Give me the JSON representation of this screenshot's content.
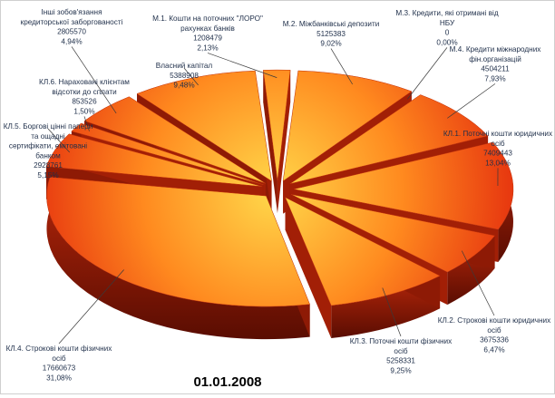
{
  "chart_data": {
    "type": "pie",
    "title": "01.01.2008",
    "style": "3d-exploded",
    "colors": {
      "light": "#ffd84a",
      "mid": "#ff8a1f",
      "dark": "#e83a10",
      "edge": "#7a1204",
      "leader": "#3a3a3a"
    },
    "slices": [
      {
        "lines": [
          "М.1. Кошти на поточних \"ЛОРО\"",
          "рахунках банків",
          "1208479",
          "2,13%"
        ],
        "value": 1208479,
        "percent": 2.13
      },
      {
        "lines": [
          "М.2. Міжбанківські депозити",
          "5125383",
          "9,02%"
        ],
        "value": 5125383,
        "percent": 9.02
      },
      {
        "lines": [
          "М.3. Кредити, які отримані від",
          "НБУ",
          "0",
          "0,00%"
        ],
        "value": 0,
        "percent": 0.0
      },
      {
        "lines": [
          "М.4. Кредити міжнародних",
          "фін.організацій",
          "4504211",
          "7,93%"
        ],
        "value": 4504211,
        "percent": 7.93
      },
      {
        "lines": [
          "КЛ.1. Поточні кошти юридичних",
          "осіб",
          "7409443",
          "13,04%"
        ],
        "value": 7409443,
        "percent": 13.04
      },
      {
        "lines": [
          "КЛ.2. Строкові кошти юридичних",
          "осіб",
          "3675336",
          "6,47%"
        ],
        "value": 3675336,
        "percent": 6.47
      },
      {
        "lines": [
          "КЛ.3. Поточні кошти фізичних",
          "осіб",
          "5258331",
          "9,25%"
        ],
        "value": 5258331,
        "percent": 9.25
      },
      {
        "lines": [
          "КЛ.4. Строкові кошти фізичних",
          "осіб",
          "17660673",
          "31,08%"
        ],
        "value": 17660673,
        "percent": 31.08
      },
      {
        "lines": [
          "КЛ.5. Боргові цінні папери",
          "та ощадні",
          "сертифікати, емітовані",
          "банком",
          "2928761",
          "5,15%"
        ],
        "value": 2928761,
        "percent": 5.15
      },
      {
        "lines": [
          "КЛ.6. Нараховані  клієнтам",
          "відсотки до сплати",
          "853526",
          "1,50%"
        ],
        "value": 853526,
        "percent": 1.5
      },
      {
        "lines": [
          "Інші зобов'язання",
          "кредиторської заборгованості",
          "2805570",
          "4,94%"
        ],
        "value": 2805570,
        "percent": 4.94
      },
      {
        "lines": [
          "Власний капітал",
          "5388908",
          "9,48%"
        ],
        "value": 5388908,
        "percent": 9.48
      }
    ]
  }
}
